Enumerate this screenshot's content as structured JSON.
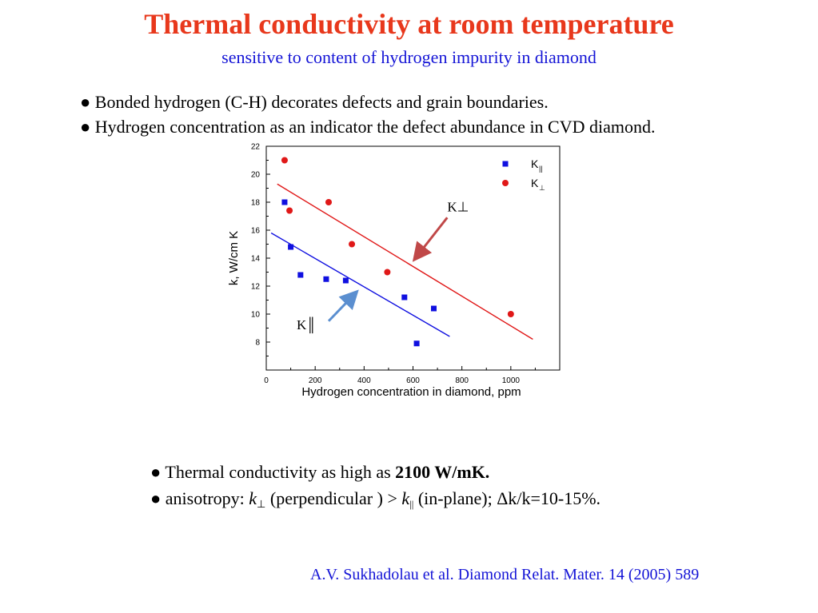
{
  "title": "Thermal conductivity at room temperature",
  "subtitle": "sensitive to content of hydrogen impurity in diamond",
  "bullets_top": [
    "● Bonded hydrogen (C-H) decorates defects and grain boundaries.",
    "● Hydrogen concentration as an indicator the defect abundance in CVD diamond."
  ],
  "bullets_bottom": {
    "line1_prefix": "● Thermal conductivity as high as ",
    "line1_bold": "2100 W/mK.",
    "line2_prefix": "● anisotropy: ",
    "k": "k",
    "perp_symbol": "⊥",
    "line2_middle": " (perpendicular ) >  ",
    "par_symbol": "||",
    "line2_suffix": " (in-plane); Δk/k=10-15%."
  },
  "citation": "A.V. Sukhadolau et al. Diamond Relat. Mater. 14 (2005) 589",
  "colors": {
    "title": "#e8381c",
    "subtitle": "#1414d6",
    "perp": "#e01818",
    "par": "#1010e0",
    "arrow_perp": "#c04848",
    "arrow_par": "#5b8fd0"
  },
  "chart_data": {
    "type": "scatter",
    "xlabel": "Hydrogen concentration in diamond, ppm",
    "ylabel": "k, W/cm K",
    "xlim": [
      0,
      1200
    ],
    "ylim": [
      6,
      22
    ],
    "xticks": [
      0,
      200,
      400,
      600,
      800,
      1000
    ],
    "yticks": [
      8,
      10,
      12,
      14,
      16,
      18,
      20,
      22
    ],
    "legend_position": "top-right",
    "series": [
      {
        "name": "K||",
        "legend_main": "K",
        "legend_sub": "||",
        "marker": "square",
        "color": "#1010e0",
        "points": [
          [
            75,
            18.0
          ],
          [
            100,
            14.8
          ],
          [
            140,
            12.8
          ],
          [
            245,
            12.5
          ],
          [
            325,
            12.4
          ],
          [
            565,
            11.2
          ],
          [
            685,
            10.4
          ],
          [
            615,
            7.9
          ]
        ],
        "fit": [
          [
            20,
            15.8
          ],
          [
            750,
            8.4
          ]
        ]
      },
      {
        "name": "K⊥",
        "legend_main": "K",
        "legend_sub": "⊥",
        "marker": "circle",
        "color": "#e01818",
        "points": [
          [
            75,
            21.0
          ],
          [
            95,
            17.4
          ],
          [
            255,
            18.0
          ],
          [
            350,
            15.0
          ],
          [
            495,
            13.0
          ],
          [
            1000,
            10.0
          ]
        ],
        "fit": [
          [
            45,
            19.3
          ],
          [
            1090,
            8.2
          ]
        ]
      }
    ],
    "annotations": [
      {
        "label": "K⊥",
        "color": "#c04848",
        "from": [
          740,
          16.9
        ],
        "to": [
          610,
          14.0
        ]
      },
      {
        "label": "K║",
        "color": "#5b8fd0",
        "from": [
          255,
          9.5
        ],
        "to": [
          365,
          11.5
        ]
      }
    ]
  }
}
